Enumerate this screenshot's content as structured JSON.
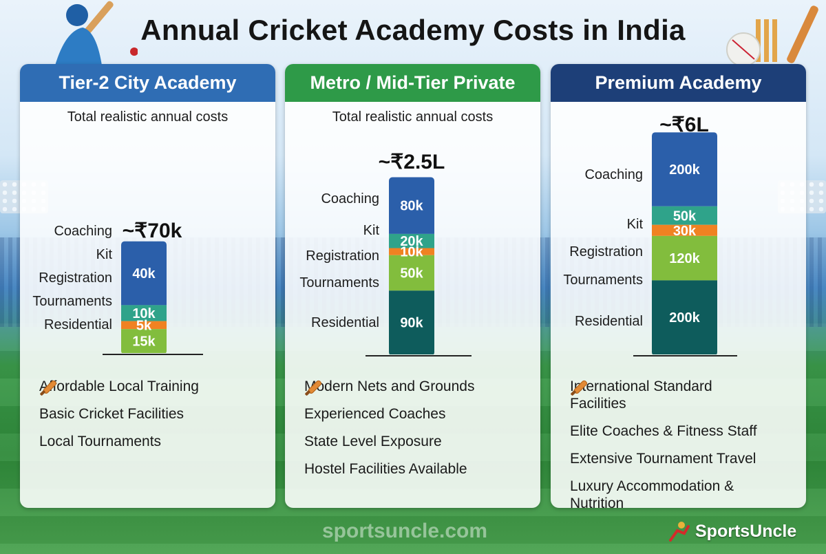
{
  "title": "Annual Cricket Academy Costs in India",
  "colors": {
    "Coaching": "#2b5faa",
    "Kit": "#2fa38a",
    "Registration": "#f08222",
    "Tournaments": "#82bd3d",
    "Residential": "#0e5c5c",
    "header_tier2": "#2f6db4",
    "header_metro": "#2e9a48",
    "header_premium": "#1d3f78"
  },
  "chart_data": [
    {
      "type": "bar",
      "stacked": true,
      "title": "Tier-2 City Academy",
      "subtitle": "Total realistic annual costs",
      "total_label": "~₹70k",
      "categories": [
        "Coaching",
        "Kit",
        "Registration",
        "Tournaments",
        "Residential"
      ],
      "values_k": [
        40,
        10,
        5,
        15,
        0
      ],
      "value_labels": [
        "40k",
        "10k",
        "5k",
        "15k",
        ""
      ],
      "features": [
        "Affordable Local Training",
        "Basic Cricket Facilities",
        "Local Tournaments"
      ]
    },
    {
      "type": "bar",
      "stacked": true,
      "title": "Metro / Mid-Tier Private",
      "subtitle": "Total realistic annual costs",
      "total_label": "~₹2.5L",
      "categories": [
        "Coaching",
        "Kit",
        "Registration",
        "Tournaments",
        "Residential"
      ],
      "values_k": [
        80,
        20,
        10,
        50,
        90
      ],
      "value_labels": [
        "80k",
        "20k",
        "10k",
        "50k",
        "90k"
      ],
      "features": [
        "Modern Nets and Grounds",
        "Experienced Coaches",
        "State Level Exposure",
        "Hostel Facilities Available"
      ]
    },
    {
      "type": "bar",
      "stacked": true,
      "title": "Premium Academy",
      "subtitle": "",
      "total_label": "~₹6L",
      "categories": [
        "Coaching",
        "Kit",
        "Registration",
        "Tournaments",
        "Residential"
      ],
      "values_k": [
        200,
        50,
        30,
        120,
        200
      ],
      "value_labels": [
        "200k",
        "50k",
        "30k",
        "120k",
        "200k"
      ],
      "features": [
        "International Standard Facilities",
        "Elite Coaches & Fitness Staff",
        "Extensive Tournament Travel",
        "Luxury Accommodation & Nutrition"
      ]
    }
  ],
  "footer": {
    "watermark": "sportsuncle.com",
    "brand": "SportsUncle"
  }
}
